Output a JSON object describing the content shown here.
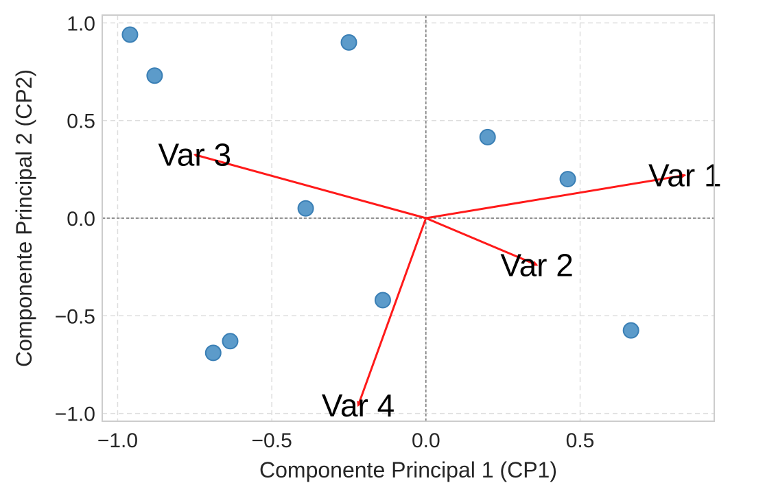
{
  "chart_data": {
    "type": "scatter",
    "xlabel": "Componente Principal 1 (CP1)",
    "ylabel": "Componente Principal 2 (CP2)",
    "xlim": [
      -1.05,
      0.935
    ],
    "ylim": [
      -1.04,
      1.04
    ],
    "x_ticks": [
      {
        "value": -1.0,
        "label": "−1.0"
      },
      {
        "value": -0.5,
        "label": "−0.5"
      },
      {
        "value": 0.0,
        "label": "0.0"
      },
      {
        "value": 0.5,
        "label": "0.5"
      }
    ],
    "y_ticks": [
      {
        "value": 1.0,
        "label": "1.0"
      },
      {
        "value": 0.5,
        "label": "0.5"
      },
      {
        "value": 0.0,
        "label": "0.0"
      },
      {
        "value": -0.5,
        "label": "−0.5"
      },
      {
        "value": -1.0,
        "label": "−1.0"
      }
    ],
    "grid": true,
    "points": {
      "color": "#4a90c4",
      "x": [
        -0.96,
        -0.88,
        -0.25,
        0.2,
        0.46,
        -0.39,
        -0.14,
        -0.69,
        -0.635,
        0.665
      ],
      "y": [
        0.94,
        0.73,
        0.9,
        0.415,
        0.2,
        0.05,
        -0.42,
        -0.69,
        -0.63,
        -0.575
      ]
    },
    "loadings": {
      "color": "#ff1a1a",
      "vectors": [
        {
          "name": "Var 1",
          "x": 0.84,
          "y": 0.22
        },
        {
          "name": "Var 2",
          "x": 0.36,
          "y": -0.24
        },
        {
          "name": "Var 3",
          "x": -0.75,
          "y": 0.325
        },
        {
          "name": "Var 4",
          "x": -0.22,
          "y": -0.96
        }
      ]
    }
  }
}
